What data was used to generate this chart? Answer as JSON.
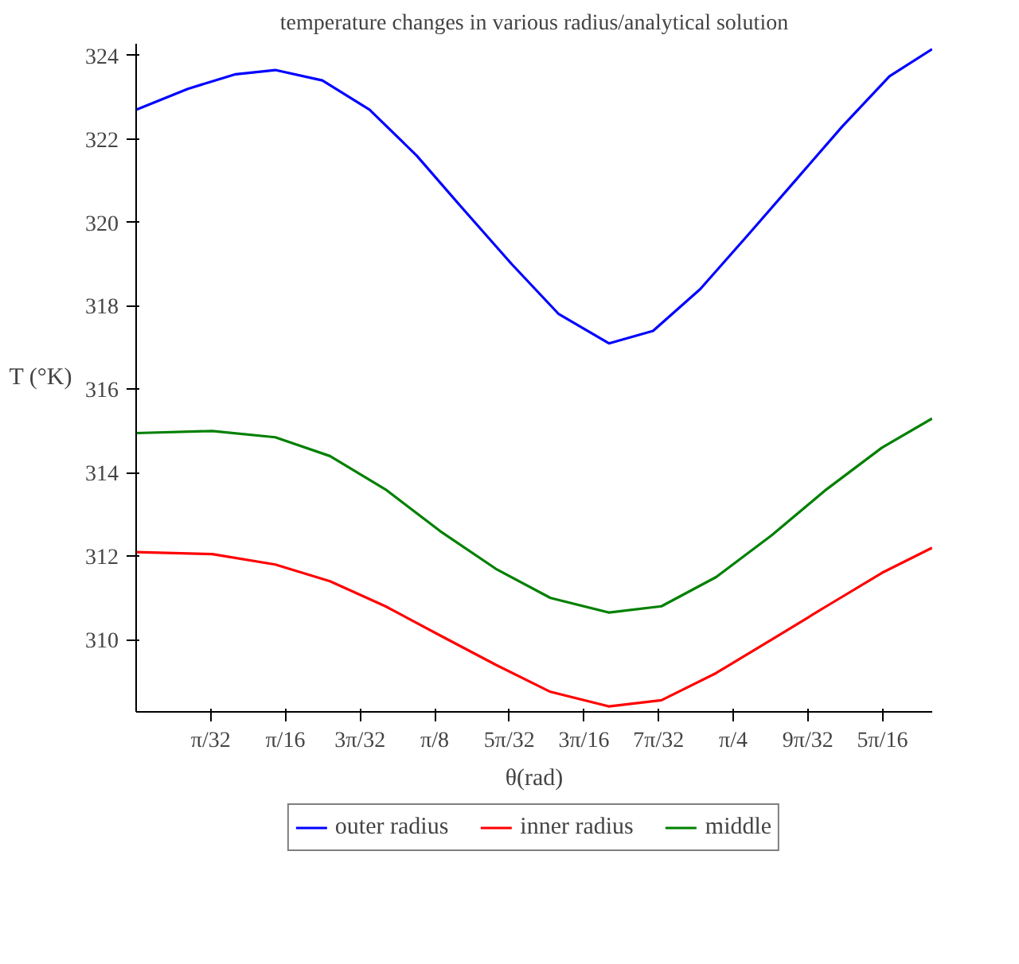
{
  "chart_data": {
    "type": "line",
    "title": "temperature changes in various radius/analytical solution",
    "xlabel": "θ(rad)",
    "ylabel": "T (°K)",
    "xlim": [
      0,
      1.0472
    ],
    "ylim": [
      308.27,
      324.28
    ],
    "xticks": [
      {
        "value": 0.0982,
        "label": "π/32"
      },
      {
        "value": 0.1963,
        "label": "π/16"
      },
      {
        "value": 0.2945,
        "label": "3π/32"
      },
      {
        "value": 0.3927,
        "label": "π/8"
      },
      {
        "value": 0.4909,
        "label": "5π/32"
      },
      {
        "value": 0.589,
        "label": "3π/16"
      },
      {
        "value": 0.6872,
        "label": "7π/32"
      },
      {
        "value": 0.7854,
        "label": "π/4"
      },
      {
        "value": 0.8836,
        "label": "9π/32"
      },
      {
        "value": 0.9817,
        "label": "5π/16"
      }
    ],
    "yticks": [
      310,
      312,
      314,
      316,
      318,
      320,
      322,
      324
    ],
    "grid": false,
    "legend": "bottom",
    "line_style": "solid",
    "marker": "none",
    "series": [
      {
        "name": "outer radius",
        "color": "#0000ff",
        "x": [
          0,
          0.068,
          0.131,
          0.183,
          0.245,
          0.307,
          0.369,
          0.431,
          0.494,
          0.556,
          0.622,
          0.68,
          0.742,
          0.805,
          0.867,
          0.929,
          0.991,
          1.047
        ],
        "values": [
          322.7,
          323.2,
          323.55,
          323.65,
          323.4,
          322.7,
          321.6,
          320.3,
          319.0,
          317.8,
          317.1,
          317.4,
          318.4,
          319.7,
          321.0,
          322.3,
          323.5,
          324.15
        ]
      },
      {
        "name": "inner radius",
        "color": "#ff0000",
        "x": [
          0,
          0.1,
          0.183,
          0.255,
          0.328,
          0.4,
          0.473,
          0.545,
          0.622,
          0.691,
          0.763,
          0.836,
          0.908,
          0.981,
          1.047
        ],
        "values": [
          312.1,
          312.05,
          311.8,
          311.4,
          310.8,
          310.1,
          309.4,
          308.75,
          308.4,
          308.55,
          309.2,
          310.0,
          310.8,
          311.6,
          312.2
        ]
      },
      {
        "name": "middle",
        "color": "#008000",
        "x": [
          0,
          0.1,
          0.183,
          0.255,
          0.328,
          0.4,
          0.473,
          0.545,
          0.622,
          0.691,
          0.763,
          0.836,
          0.908,
          0.981,
          1.047
        ],
        "values": [
          314.95,
          315.0,
          314.85,
          314.4,
          313.6,
          312.6,
          311.7,
          311.0,
          310.65,
          310.8,
          311.5,
          312.5,
          313.6,
          314.6,
          315.3
        ]
      }
    ]
  }
}
